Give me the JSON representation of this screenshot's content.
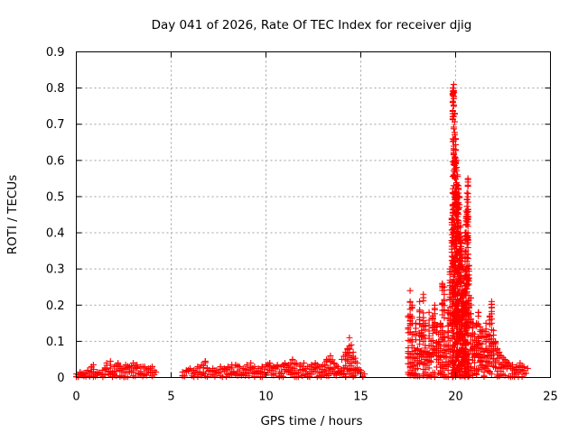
{
  "chart_data": {
    "type": "scatter",
    "title": "Day 041 of 2026, Rate Of TEC Index for receiver djig",
    "xlabel": "GPS time / hours",
    "ylabel": "ROTI / TECUs",
    "xlim": [
      0,
      25
    ],
    "ylim": [
      0,
      0.9
    ],
    "xticks": [
      0,
      5,
      10,
      15,
      20,
      25
    ],
    "xtick_labels": [
      "0",
      "5",
      "10",
      "15",
      "20",
      "25"
    ],
    "yticks": [
      0,
      0.1,
      0.2,
      0.3,
      0.4,
      0.5,
      0.6,
      0.7,
      0.8,
      0.9
    ],
    "ytick_labels": [
      "0",
      "0.1",
      "0.2",
      "0.3",
      "0.4",
      "0.5",
      "0.6",
      "0.7",
      "0.8",
      "0.9"
    ],
    "grid": true,
    "marker": "+",
    "color": "#ff0000",
    "series": [
      {
        "name": "ROTI",
        "x": [
          0.0,
          0.2,
          0.4,
          0.6,
          0.8,
          0.9,
          1.1,
          1.4,
          1.6,
          1.8,
          2.0,
          2.2,
          2.4,
          2.6,
          2.8,
          3.0,
          3.2,
          3.4,
          3.6,
          3.8,
          4.0,
          4.2,
          5.6,
          5.8,
          6.0,
          6.2,
          6.4,
          6.6,
          6.8,
          7.0,
          7.2,
          7.4,
          7.6,
          7.8,
          8.0,
          8.2,
          8.4,
          8.6,
          8.8,
          9.0,
          9.2,
          9.4,
          9.6,
          9.8,
          10.0,
          10.2,
          10.4,
          10.6,
          10.8,
          11.0,
          11.2,
          11.4,
          11.6,
          11.8,
          12.0,
          12.2,
          12.4,
          12.6,
          12.8,
          13.0,
          13.2,
          13.4,
          13.6,
          13.8,
          14.0,
          14.2,
          14.3,
          14.4,
          14.5,
          14.6,
          14.8,
          15.0,
          15.2,
          17.5,
          17.6,
          17.7,
          17.8,
          17.9,
          18.0,
          18.1,
          18.2,
          18.3,
          18.4,
          18.5,
          18.6,
          18.7,
          18.8,
          18.9,
          19.0,
          19.1,
          19.2,
          19.3,
          19.4,
          19.5,
          19.7,
          19.8,
          19.85,
          19.9,
          19.95,
          20.0,
          20.05,
          20.1,
          20.15,
          20.2,
          20.25,
          20.3,
          20.35,
          20.4,
          20.45,
          20.5,
          20.55,
          20.6,
          20.65,
          20.7,
          20.8,
          20.9,
          21.0,
          21.1,
          21.2,
          21.3,
          21.4,
          21.5,
          21.6,
          21.7,
          21.8,
          21.9,
          22.0,
          22.1,
          22.2,
          22.3,
          22.4,
          22.6,
          22.8,
          23.0,
          23.2,
          23.4,
          23.6,
          23.8
        ],
        "y": [
          0.01,
          0.015,
          0.012,
          0.02,
          0.03,
          0.035,
          0.015,
          0.02,
          0.04,
          0.045,
          0.03,
          0.04,
          0.025,
          0.035,
          0.03,
          0.04,
          0.035,
          0.03,
          0.03,
          0.025,
          0.03,
          0.015,
          0.015,
          0.02,
          0.025,
          0.02,
          0.03,
          0.035,
          0.045,
          0.02,
          0.025,
          0.02,
          0.03,
          0.025,
          0.03,
          0.035,
          0.035,
          0.03,
          0.025,
          0.035,
          0.04,
          0.03,
          0.025,
          0.03,
          0.035,
          0.04,
          0.03,
          0.035,
          0.03,
          0.04,
          0.035,
          0.05,
          0.04,
          0.035,
          0.04,
          0.03,
          0.035,
          0.04,
          0.03,
          0.035,
          0.05,
          0.06,
          0.04,
          0.03,
          0.05,
          0.07,
          0.08,
          0.11,
          0.09,
          0.07,
          0.04,
          0.02,
          0.01,
          0.17,
          0.24,
          0.2,
          0.12,
          0.15,
          0.08,
          0.21,
          0.13,
          0.23,
          0.15,
          0.07,
          0.18,
          0.1,
          0.17,
          0.2,
          0.14,
          0.12,
          0.15,
          0.26,
          0.25,
          0.09,
          0.3,
          0.44,
          0.8,
          0.81,
          0.73,
          0.66,
          0.6,
          0.56,
          0.53,
          0.5,
          0.42,
          0.38,
          0.33,
          0.3,
          0.26,
          0.4,
          0.46,
          0.51,
          0.55,
          0.31,
          0.22,
          0.15,
          0.12,
          0.15,
          0.18,
          0.14,
          0.13,
          0.11,
          0.15,
          0.12,
          0.17,
          0.21,
          0.13,
          0.1,
          0.08,
          0.07,
          0.06,
          0.05,
          0.04,
          0.035,
          0.03,
          0.04,
          0.03,
          0.025
        ],
        "noise_floor": 0.02
      }
    ]
  }
}
